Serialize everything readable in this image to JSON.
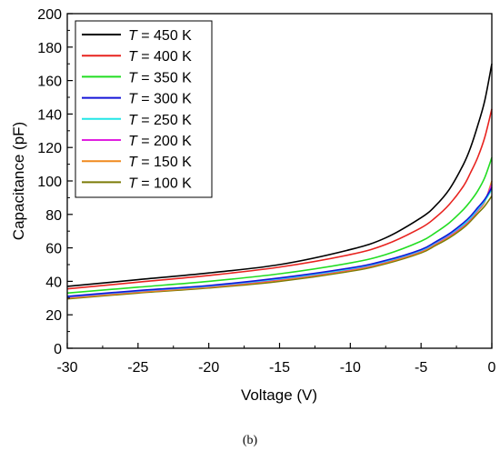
{
  "chart_data": {
    "type": "line",
    "xlabel": "Voltage (V)",
    "ylabel": "Capacitance (pF)",
    "xlim": [
      -30,
      0
    ],
    "ylim": [
      0,
      200
    ],
    "xticks": [
      -30,
      -25,
      -20,
      -15,
      -10,
      -5,
      0
    ],
    "yticks": [
      0,
      20,
      40,
      60,
      80,
      100,
      120,
      140,
      160,
      180,
      200
    ],
    "xtick_labels": [
      "-30",
      "-25",
      "-20",
      "-15",
      "-10",
      "-5",
      "0"
    ],
    "ytick_labels": [
      "0",
      "20",
      "40",
      "60",
      "80",
      "100",
      "120",
      "140",
      "160",
      "180",
      "200"
    ],
    "grid": false,
    "legend_position": "top-left",
    "panel_label": "(b)",
    "x": [
      -30,
      -25,
      -20,
      -15,
      -10,
      -7.5,
      -5,
      -4,
      -3,
      -2,
      -1.5,
      -1,
      -0.5,
      0
    ],
    "series": [
      {
        "name_prefix": "T",
        "name_suffix": " = 450 K",
        "color": "#000000",
        "values": [
          37,
          41,
          45,
          50,
          59,
          66,
          78,
          85,
          95,
          110,
          120,
          133,
          148,
          170
        ]
      },
      {
        "name_prefix": "T",
        "name_suffix": " = 400 K",
        "color": "#e8231f",
        "values": [
          35.5,
          39.5,
          43.5,
          48.5,
          56,
          62,
          72,
          78,
          86,
          97,
          105,
          114,
          126,
          143
        ]
      },
      {
        "name_prefix": "T",
        "name_suffix": " = 350 K",
        "color": "#22dd22",
        "values": [
          33,
          36.5,
          40,
          44.5,
          51,
          56,
          64,
          69,
          75,
          83,
          88,
          94,
          102,
          114
        ]
      },
      {
        "name_prefix": "T",
        "name_suffix": " = 300 K",
        "color": "#1515d8",
        "values": [
          31,
          34.5,
          37.5,
          42,
          48,
          52.5,
          59,
          63.5,
          68.5,
          75,
          79,
          84,
          89,
          96
        ]
      },
      {
        "name_prefix": "T",
        "name_suffix": " = 250 K",
        "color": "#22e6e6",
        "values": [
          30.8,
          34.2,
          37.2,
          41.5,
          47.5,
          52,
          58.5,
          63,
          68,
          74,
          78,
          83,
          88,
          95
        ]
      },
      {
        "name_prefix": "T",
        "name_suffix": " = 200 K",
        "color": "#e020e0",
        "values": [
          30.5,
          34,
          37,
          41.2,
          47.2,
          51.7,
          58.2,
          62.7,
          67.5,
          73.5,
          77.5,
          82.5,
          88,
          98
        ]
      },
      {
        "name_prefix": "T",
        "name_suffix": " = 150 K",
        "color": "#f08a1e",
        "values": [
          30,
          33.5,
          36.5,
          40.7,
          46.7,
          51.2,
          57.7,
          62.2,
          67,
          73,
          77,
          82,
          87.5,
          100
        ]
      },
      {
        "name_prefix": "T",
        "name_suffix": " = 100 K",
        "color": "#7b7b08",
        "values": [
          29.5,
          33,
          36,
          40,
          46,
          50.5,
          57,
          61.3,
          66,
          72,
          76,
          80.5,
          85,
          91
        ]
      }
    ]
  }
}
